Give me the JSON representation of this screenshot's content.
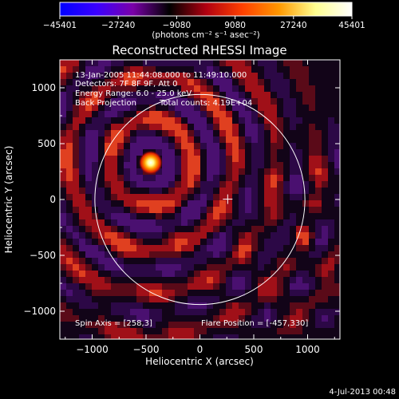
{
  "chart_data": {
    "type": "heatmap",
    "title": "Reconstructed RHESSI Image",
    "xlabel": "Heliocentric X (arcsec)",
    "ylabel": "Heliocentric Y (arcsec)",
    "xlim": [
      -1300,
      1300
    ],
    "ylim": [
      -1250,
      1250
    ],
    "x_ticks": [
      -1000,
      -500,
      0,
      500,
      1000
    ],
    "x_tick_labels": [
      "−1000",
      "−500",
      "0",
      "500",
      "1000"
    ],
    "y_ticks": [
      -1000,
      -500,
      0,
      500,
      1000
    ],
    "y_tick_labels": [
      "−1000",
      "−500",
      "0",
      "500",
      "1000"
    ],
    "colorbar": {
      "range": [
        -45401,
        45401
      ],
      "ticks": [
        -45401,
        -27240,
        -9080,
        9080,
        27240,
        45401
      ],
      "tick_labels": [
        "−45401",
        "−27240",
        "−9080",
        "9080",
        "27240",
        "45401"
      ],
      "unit_label": "(photons cm⁻² s⁻¹ asec⁻²)",
      "stops": [
        "#0000ff",
        "#3a00ff",
        "#7a00a8",
        "#000000",
        "#b00010",
        "#ff4000",
        "#ff9800",
        "#ffff90",
        "#ffffff"
      ]
    },
    "annotations": {
      "time_range": "13-Jan-2005 11:44:08.000 to 11:49:10.000",
      "detectors": "Detectors: 7F 8F 9F, Att 0",
      "energy_range": "Energy Range: 6.0 - 25.0 keV",
      "method": "Back Projection",
      "total_counts": "Total counts: 4.19E+04",
      "spin_axis": "Spin Axis = [258,3]",
      "flare_position": "Flare Position = [-457,330]"
    },
    "solar_limb": {
      "center": [
        0,
        0
      ],
      "radius": 975
    },
    "spin_axis_marker": [
      258,
      3
    ],
    "source_peak": {
      "x": -457,
      "y": 330
    },
    "footer_timestamp": "4-Jul-2013 00:48"
  }
}
